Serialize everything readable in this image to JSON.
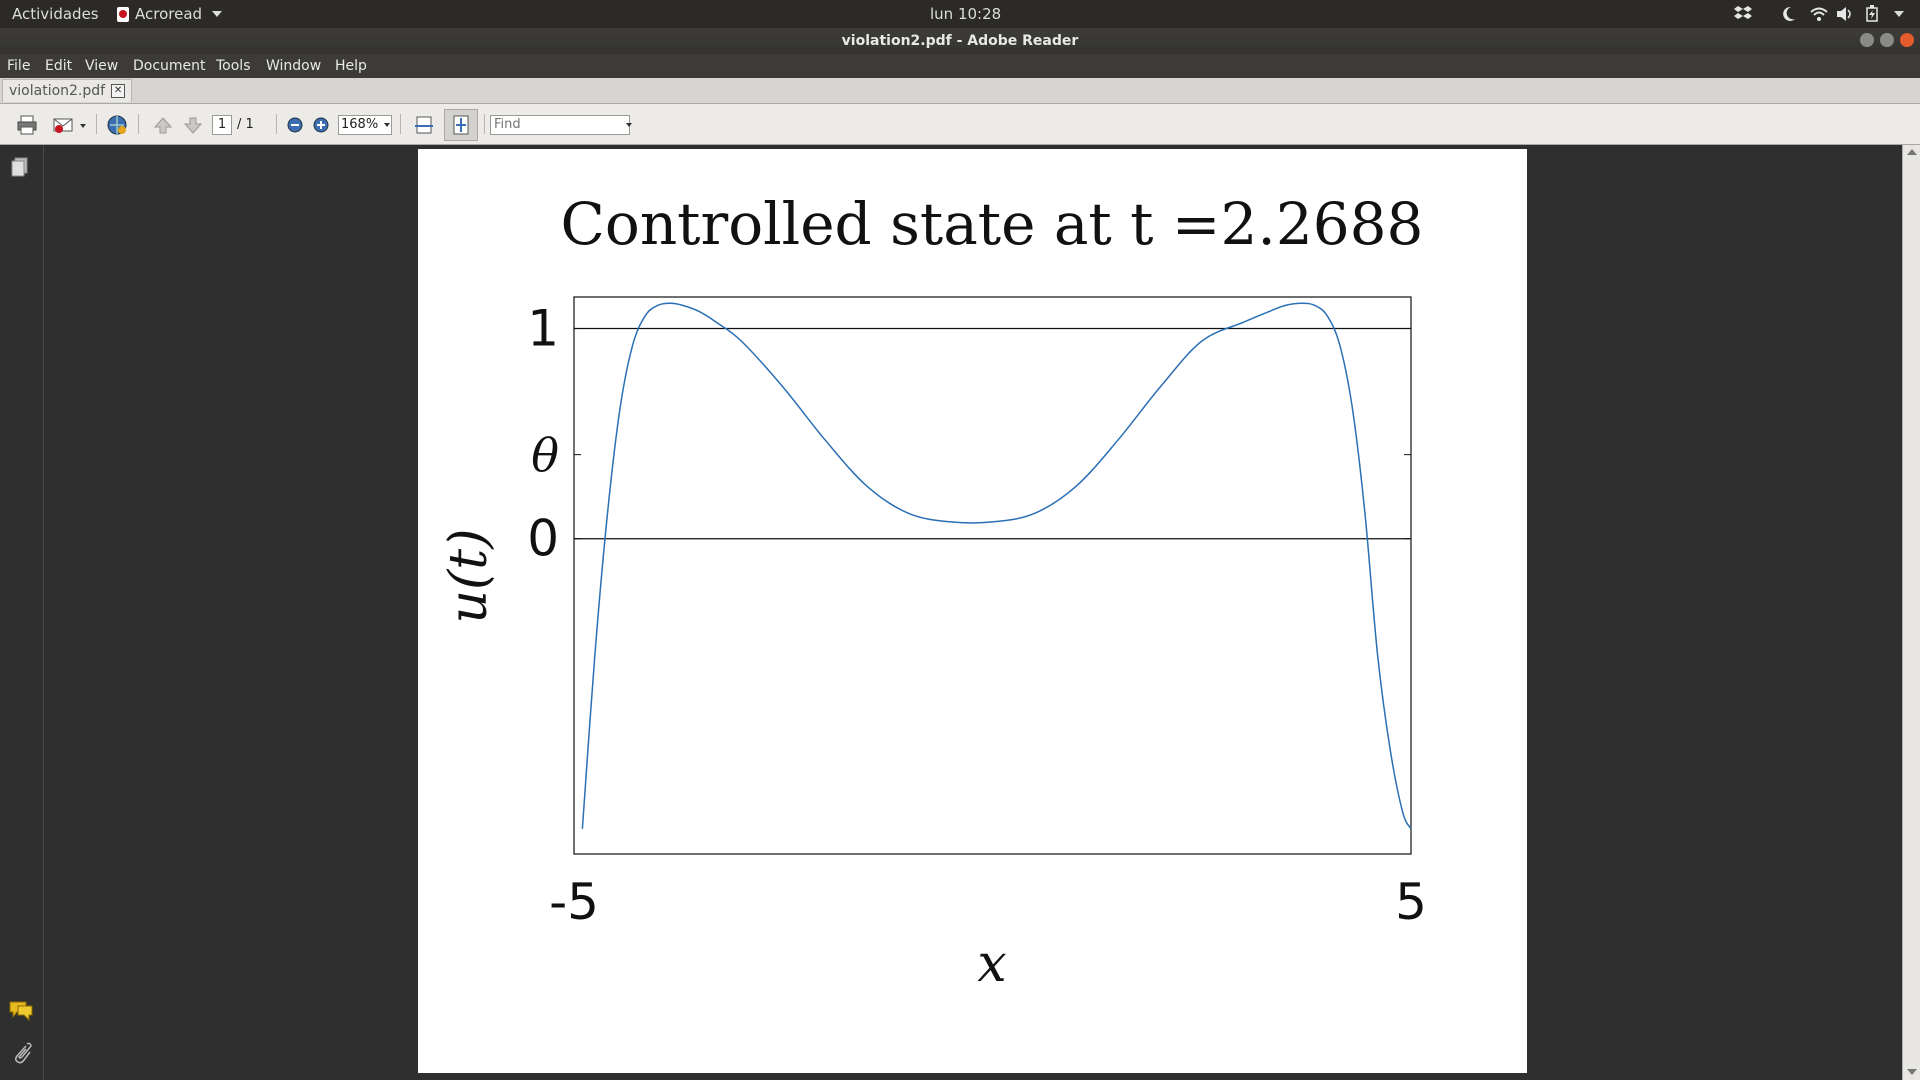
{
  "topbar": {
    "activities": "Actividades",
    "app_name": "Acroread",
    "clock": "lun 10:28"
  },
  "window": {
    "title": "violation2.pdf - Adobe Reader"
  },
  "menubar": {
    "items": [
      "File",
      "Edit",
      "View",
      "Document",
      "Tools",
      "Window",
      "Help"
    ]
  },
  "tab": {
    "label": "violation2.pdf",
    "close": "✕"
  },
  "toolbar": {
    "page_current": "1",
    "page_total": "/ 1",
    "zoom": "168%",
    "find_placeholder": "Find"
  },
  "icons": {
    "top_right": [
      "dropbox-icon",
      "night-mode-icon",
      "wifi-icon",
      "volume-icon",
      "battery-icon",
      "chevron-down-icon"
    ],
    "toolbar": [
      "print-icon",
      "email-icon",
      "share-icon",
      "previous-page-icon",
      "next-page-icon",
      "zoom-out-icon",
      "zoom-in-icon",
      "fit-width-icon",
      "fit-page-icon"
    ],
    "leftpanel": [
      "pages-icon",
      "comments-icon",
      "attachment-icon"
    ]
  },
  "colors": {
    "curve": "#2b6fb5",
    "page_bg": "#ffffff",
    "viewer_bg": "#2f2f2f"
  },
  "chart_data": {
    "type": "line",
    "title": "Controlled state at t =2.2688",
    "xlabel": "x",
    "ylabel": "u(t)",
    "xlim": [
      -5,
      5
    ],
    "ylim": [
      -1.5,
      1.15
    ],
    "x_ticks": [
      {
        "value": -5,
        "label": "-5"
      },
      {
        "value": 5,
        "label": "5"
      }
    ],
    "y_ticks": [
      {
        "value": 0,
        "label": "0"
      },
      {
        "value": 0.4,
        "label": "θ"
      },
      {
        "value": 1,
        "label": "1"
      }
    ],
    "reference_lines": [
      0,
      1
    ],
    "series": [
      {
        "x": [
          -4.9,
          -4.75,
          -4.6,
          -4.45,
          -4.3,
          -4.15,
          -4.0,
          -3.85,
          -3.7,
          -3.5,
          -3.3,
          -3.0,
          -2.5,
          -2.0,
          -1.5,
          -1.0,
          -0.5,
          0.0,
          0.5,
          1.0,
          1.5,
          2.0,
          2.5,
          3.0,
          3.3,
          3.5,
          3.7,
          3.85,
          4.0,
          4.15,
          4.3,
          4.45,
          4.6,
          4.75,
          4.9,
          5.0
        ],
        "y": [
          -1.38,
          -0.55,
          0.12,
          0.62,
          0.92,
          1.06,
          1.11,
          1.12,
          1.11,
          1.08,
          1.03,
          0.94,
          0.72,
          0.47,
          0.25,
          0.12,
          0.08,
          0.08,
          0.12,
          0.25,
          0.47,
          0.72,
          0.94,
          1.03,
          1.08,
          1.11,
          1.12,
          1.11,
          1.06,
          0.92,
          0.62,
          0.12,
          -0.55,
          -1.0,
          -1.3,
          -1.38
        ]
      }
    ],
    "grid": false
  }
}
